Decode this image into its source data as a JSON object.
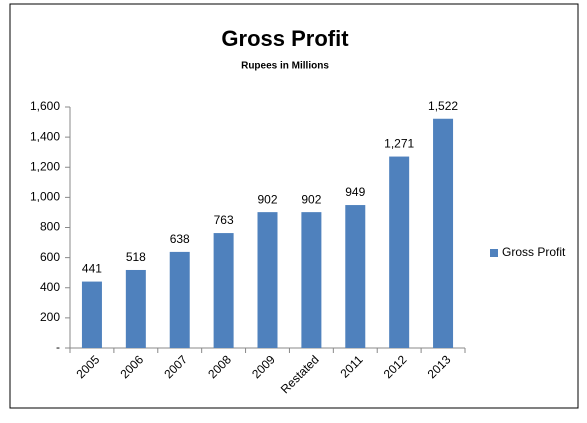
{
  "chart_data": {
    "type": "bar",
    "title": "Gross Profit",
    "subtitle": "Rupees in Millions",
    "categories": [
      "2005",
      "2006",
      "2007",
      "2008",
      "2009",
      "Restated",
      "2011",
      "2012",
      "2013"
    ],
    "series": [
      {
        "name": "Gross Profit",
        "color": "#4f81bd",
        "values": [
          441,
          518,
          638,
          763,
          902,
          902,
          949,
          1271,
          1522
        ],
        "value_labels": [
          "441",
          "518",
          "638",
          "763",
          "902",
          "902",
          "949",
          "1,271",
          "1,522"
        ]
      }
    ],
    "ylim": [
      0,
      1600
    ],
    "yticks": [
      {
        "value": 0,
        "label": "-"
      },
      200,
      400,
      600,
      800,
      {
        "value": 1000,
        "label": "1,000"
      },
      {
        "value": 1200,
        "label": "1,200"
      },
      {
        "value": 1400,
        "label": "1,400"
      },
      {
        "value": 1600,
        "label": "1,600"
      }
    ],
    "grid": false,
    "legend": "right"
  }
}
